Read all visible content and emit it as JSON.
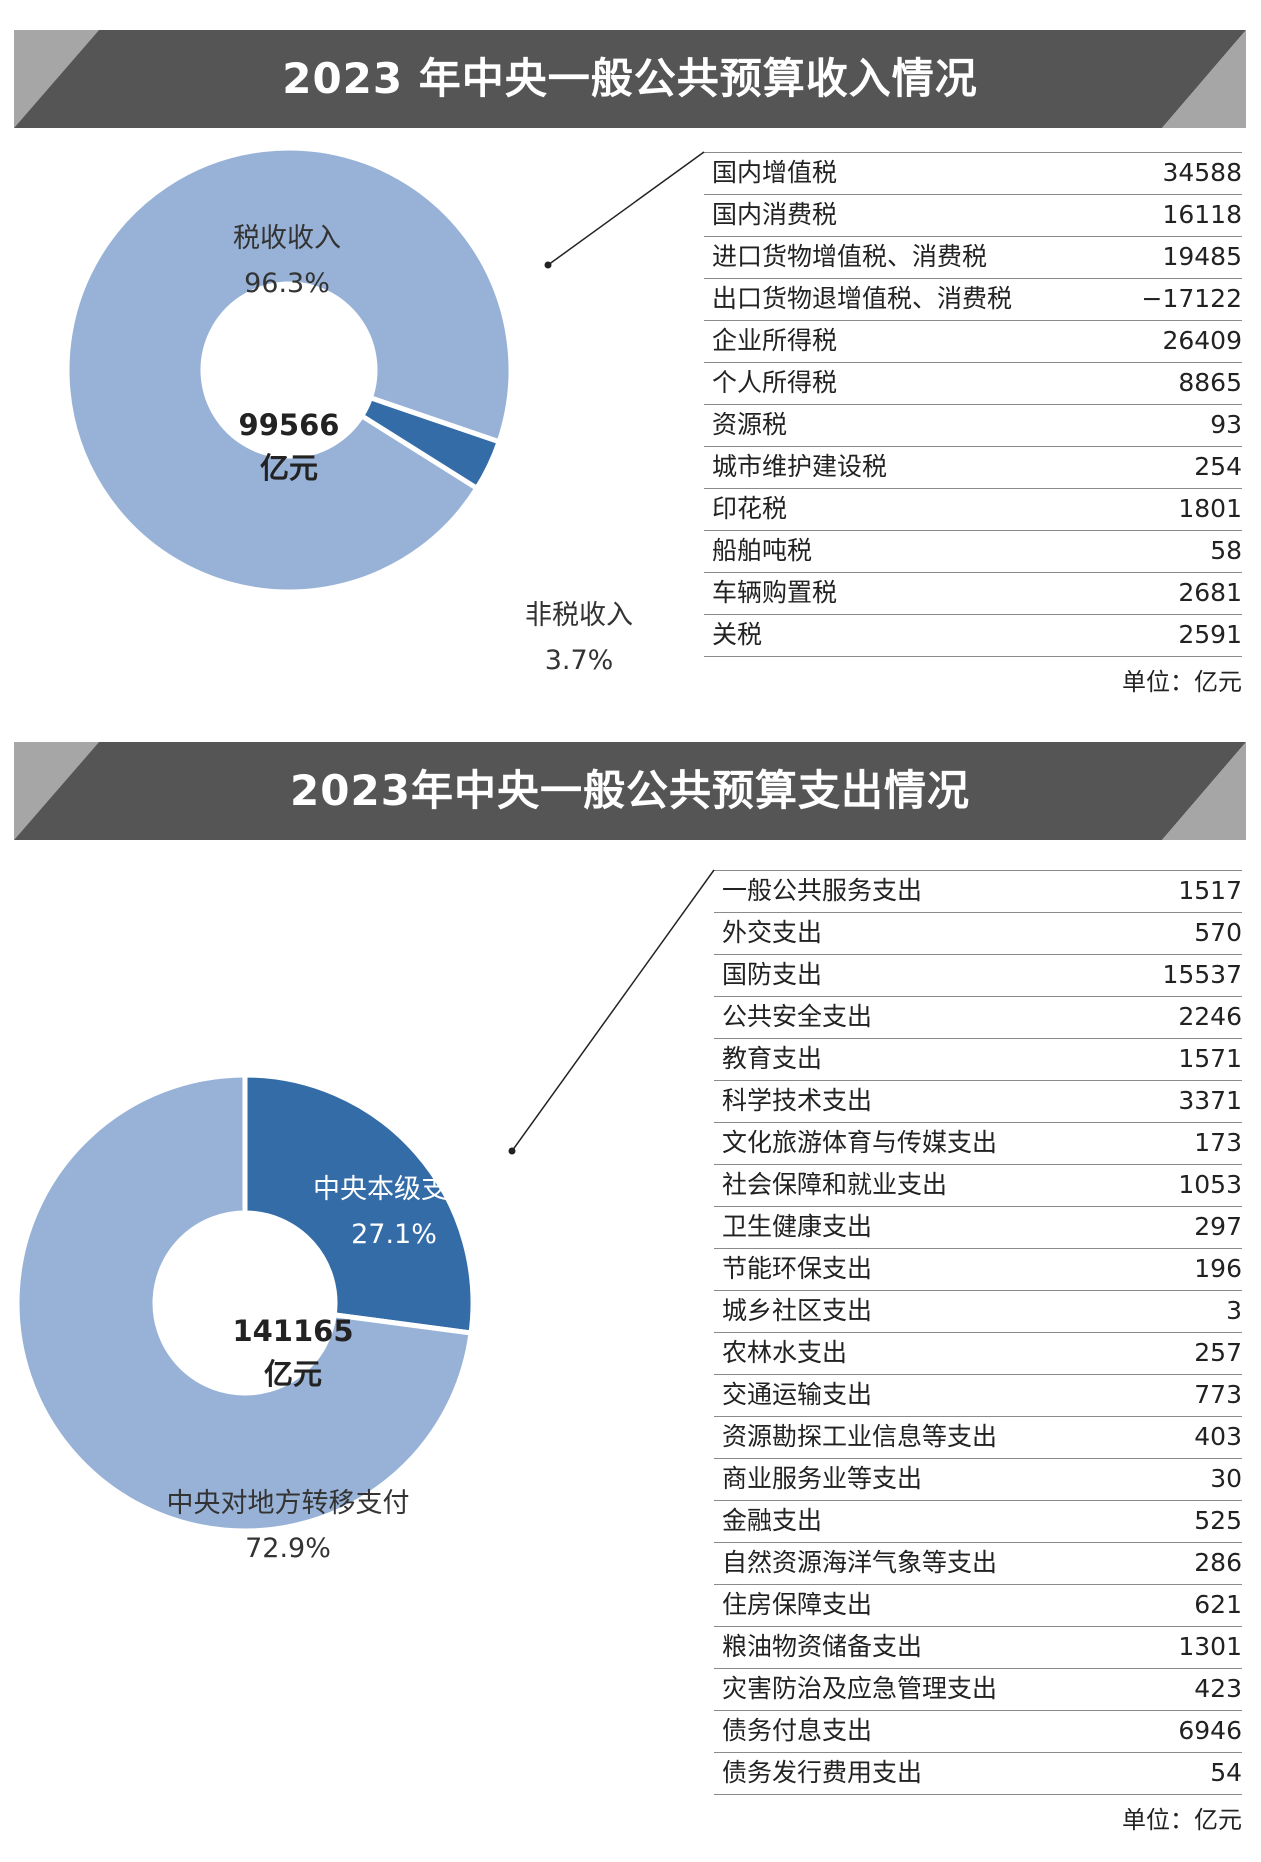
{
  "colors": {
    "banner_dark": "#555555",
    "banner_light": "#a6a6a6",
    "slice_light": "#98b2d7",
    "slice_dark": "#346ca8",
    "rule": "#8a8a8a"
  },
  "chart_data": [
    {
      "type": "pie",
      "title": "2023 年中央一般公共预算收入情况",
      "center_value": "99566",
      "center_unit": "亿元",
      "slices": [
        {
          "name": "税收收入",
          "value": 96.3,
          "value_label": "96.3%"
        },
        {
          "name": "非税收入",
          "value": 3.7,
          "value_label": "3.7%"
        }
      ]
    },
    {
      "type": "table",
      "rows": [
        {
          "label": "国内增值税",
          "value": "34588"
        },
        {
          "label": "国内消费税",
          "value": "16118"
        },
        {
          "label": "进口货物增值税、消费税",
          "value": "19485"
        },
        {
          "label": "出口货物退增值税、消费税",
          "value": "−17122"
        },
        {
          "label": "企业所得税",
          "value": "26409"
        },
        {
          "label": "个人所得税",
          "value": "8865"
        },
        {
          "label": "资源税",
          "value": "93"
        },
        {
          "label": "城市维护建设税",
          "value": "254"
        },
        {
          "label": "印花税",
          "value": "1801"
        },
        {
          "label": "船舶吨税",
          "value": "58"
        },
        {
          "label": "车辆购置税",
          "value": "2681"
        },
        {
          "label": "关税",
          "value": "2591"
        }
      ],
      "unit": "单位：亿元"
    },
    {
      "type": "pie",
      "title": "2023年中央一般公共预算支出情况",
      "center_value": "141165",
      "center_unit": "亿元",
      "slices": [
        {
          "name": "中央本级支出",
          "value": 27.1,
          "value_label": "27.1%"
        },
        {
          "name": "中央对地方转移支付",
          "value": 72.9,
          "value_label": "72.9%"
        }
      ]
    },
    {
      "type": "table",
      "rows": [
        {
          "label": "一般公共服务支出",
          "value": "1517"
        },
        {
          "label": "外交支出",
          "value": "570"
        },
        {
          "label": "国防支出",
          "value": "15537"
        },
        {
          "label": "公共安全支出",
          "value": "2246"
        },
        {
          "label": "教育支出",
          "value": "1571"
        },
        {
          "label": "科学技术支出",
          "value": "3371"
        },
        {
          "label": "文化旅游体育与传媒支出",
          "value": "173"
        },
        {
          "label": "社会保障和就业支出",
          "value": "1053"
        },
        {
          "label": "卫生健康支出",
          "value": "297"
        },
        {
          "label": "节能环保支出",
          "value": "196"
        },
        {
          "label": "城乡社区支出",
          "value": "3"
        },
        {
          "label": "农林水支出",
          "value": "257"
        },
        {
          "label": "交通运输支出",
          "value": "773"
        },
        {
          "label": "资源勘探工业信息等支出",
          "value": "403"
        },
        {
          "label": "商业服务业等支出",
          "value": "30"
        },
        {
          "label": "金融支出",
          "value": "525"
        },
        {
          "label": "自然资源海洋气象等支出",
          "value": "286"
        },
        {
          "label": "住房保障支出",
          "value": "621"
        },
        {
          "label": "粮油物资储备支出",
          "value": "1301"
        },
        {
          "label": "灾害防治及应急管理支出",
          "value": "423"
        },
        {
          "label": "债务付息支出",
          "value": "6946"
        },
        {
          "label": "债务发行费用支出",
          "value": "54"
        }
      ],
      "unit": "单位：亿元"
    }
  ]
}
